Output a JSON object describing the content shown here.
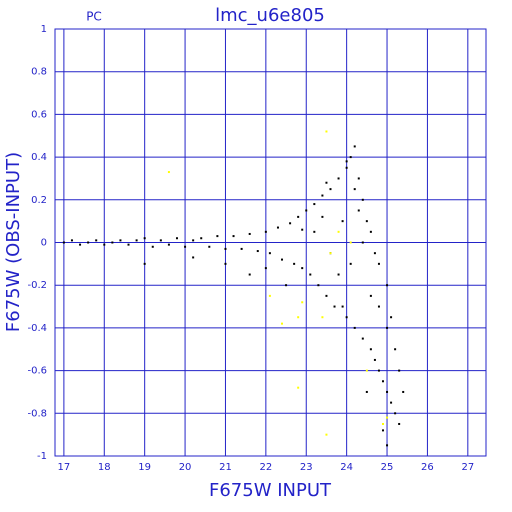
{
  "chart_data": {
    "type": "scatter",
    "title": "lmc_u6e805",
    "subtitle": "PC",
    "x_label": "F675W INPUT",
    "y_label": "F675W (OBS-INPUT)",
    "xlim": [
      16.78,
      27.45
    ],
    "ylim": [
      -1,
      1
    ],
    "xticks": [
      17,
      18,
      19,
      20,
      21,
      22,
      23,
      24,
      25,
      26,
      27
    ],
    "yticks": [
      -1,
      -0.8,
      -0.6,
      -0.4,
      -0.2,
      0,
      0.2,
      0.4,
      0.6,
      0.8,
      1
    ],
    "grid": true,
    "grid_color": "#2323c8",
    "series": [
      {
        "color": "#000000",
        "x": [
          17.0,
          17.2,
          17.4,
          17.6,
          17.8,
          18.0,
          18.2,
          18.4,
          18.6,
          18.8,
          19.0,
          19.2,
          19.4,
          19.6,
          19.8,
          20.0,
          20.2,
          20.4,
          20.6,
          20.8,
          21.0,
          21.2,
          21.4,
          21.6,
          21.8,
          22.0,
          22.1,
          22.3,
          22.4,
          22.6,
          22.7,
          22.8,
          22.9,
          23.0,
          23.1,
          23.2,
          23.3,
          23.4,
          23.5,
          23.6,
          23.7,
          23.8,
          23.9,
          24.0,
          24.1,
          24.2,
          24.3,
          24.4,
          24.5,
          24.0,
          24.2,
          24.4,
          24.6,
          24.7,
          24.8,
          24.9,
          25.0,
          25.1,
          25.2,
          25.3,
          25.0,
          25.2,
          25.4,
          24.6,
          24.8,
          25.0,
          19.0,
          20.2,
          21.0,
          21.6,
          22.0,
          22.5,
          24.5,
          25.0,
          24.9,
          23.2,
          23.6,
          23.9,
          24.1,
          24.3,
          24.6,
          24.8,
          22.9,
          23.4,
          23.8,
          24.2,
          24.7,
          25.1,
          25.3,
          24.0,
          23.5,
          24.4
        ],
        "values": [
          0.0,
          0.01,
          -0.01,
          0.0,
          0.01,
          -0.01,
          0.0,
          0.01,
          -0.01,
          0.01,
          0.02,
          -0.02,
          0.01,
          -0.01,
          0.02,
          -0.02,
          0.01,
          0.02,
          -0.02,
          0.03,
          -0.03,
          0.03,
          -0.03,
          0.04,
          -0.04,
          0.05,
          -0.05,
          0.07,
          -0.08,
          0.09,
          -0.1,
          0.12,
          -0.12,
          0.15,
          -0.15,
          0.18,
          -0.2,
          0.22,
          -0.25,
          0.25,
          -0.3,
          0.3,
          -0.3,
          0.35,
          0.4,
          0.45,
          0.3,
          0.2,
          0.1,
          -0.35,
          -0.4,
          -0.45,
          -0.5,
          -0.55,
          -0.6,
          -0.65,
          -0.7,
          -0.75,
          -0.8,
          -0.85,
          -0.4,
          -0.5,
          -0.7,
          0.05,
          -0.1,
          -0.2,
          -0.1,
          -0.07,
          -0.1,
          -0.15,
          -0.12,
          -0.2,
          -0.7,
          -0.95,
          -0.88,
          0.05,
          -0.05,
          0.1,
          -0.1,
          0.15,
          -0.25,
          -0.3,
          0.06,
          0.12,
          -0.15,
          0.25,
          -0.05,
          -0.35,
          -0.6,
          0.38,
          0.28,
          0.0
        ]
      },
      {
        "color": "#ffff00",
        "x": [
          19.6,
          23.5,
          22.8,
          23.5,
          23.4,
          22.9,
          23.8,
          24.1,
          23.6,
          22.4,
          24.9,
          25.0,
          24.5,
          22.1,
          22.8
        ],
        "values": [
          0.33,
          0.52,
          -0.68,
          -0.9,
          -0.35,
          -0.28,
          0.05,
          0.0,
          -0.05,
          -0.38,
          -0.85,
          -0.82,
          -0.6,
          -0.25,
          -0.35
        ]
      }
    ]
  }
}
